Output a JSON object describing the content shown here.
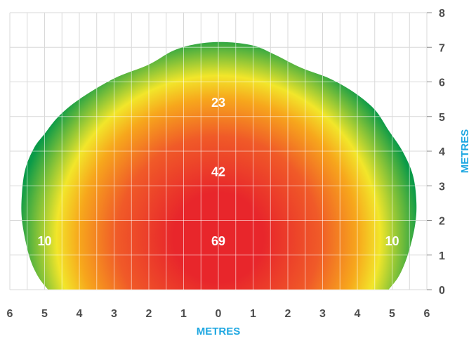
{
  "chart_data": {
    "type": "heatmap",
    "xlabel": "METRES",
    "ylabel": "METRES",
    "x_ticks": [
      "6",
      "5",
      "4",
      "3",
      "2",
      "1",
      "0",
      "1",
      "2",
      "3",
      "4",
      "5",
      "6"
    ],
    "y_ticks": [
      "0",
      "1",
      "2",
      "3",
      "4",
      "5",
      "6",
      "7",
      "8"
    ],
    "xlim": [
      -6,
      6
    ],
    "ylim": [
      0,
      8
    ],
    "grid": true,
    "boundary": [
      [
        -4.9,
        0
      ],
      [
        -5.2,
        0.4
      ],
      [
        -5.45,
        1.0
      ],
      [
        -5.65,
        2.0
      ],
      [
        -5.65,
        2.8
      ],
      [
        -5.55,
        3.5
      ],
      [
        -5.3,
        4.1
      ],
      [
        -5.0,
        4.5
      ],
      [
        -4.6,
        5.0
      ],
      [
        -4.0,
        5.5
      ],
      [
        -3.0,
        6.1
      ],
      [
        -2.0,
        6.5
      ],
      [
        -1.3,
        6.9
      ],
      [
        -0.6,
        7.1
      ],
      [
        0.2,
        7.15
      ],
      [
        1.0,
        7.05
      ],
      [
        1.6,
        6.8
      ],
      [
        2.4,
        6.4
      ],
      [
        3.2,
        6.1
      ],
      [
        3.9,
        5.7
      ],
      [
        4.5,
        5.2
      ],
      [
        4.9,
        4.6
      ],
      [
        5.3,
        4.0
      ],
      [
        5.6,
        3.3
      ],
      [
        5.7,
        2.5
      ],
      [
        5.65,
        1.8
      ],
      [
        5.45,
        1.0
      ],
      [
        5.2,
        0.4
      ],
      [
        4.9,
        0
      ]
    ],
    "gradient_center": [
      0,
      1.5
    ],
    "colors": {
      "core": "#e8262b",
      "inner": "#f05a28",
      "mid": "#f7a71c",
      "yellow": "#f2e62a",
      "edge": "#0a9a48"
    },
    "labels": [
      {
        "text": "23",
        "x": 0,
        "y": 5.4
      },
      {
        "text": "42",
        "x": 0,
        "y": 3.4
      },
      {
        "text": "69",
        "x": 0,
        "y": 1.4
      },
      {
        "text": "10",
        "x": -5.0,
        "y": 1.4
      },
      {
        "text": "10",
        "x": 5.0,
        "y": 1.4
      }
    ],
    "colors_grid": "#d9d9d9",
    "colors_axis_title": "#1ea7e1",
    "colors_tick": "#4d4d4d"
  }
}
